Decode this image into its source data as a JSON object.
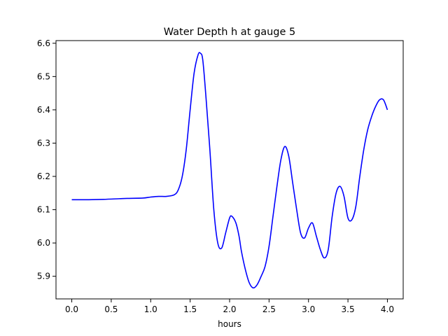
{
  "chart_data": {
    "type": "line",
    "title": "Water Depth h at gauge 5",
    "xlabel": "hours",
    "ylabel": "",
    "xlim": [
      -0.2,
      4.2
    ],
    "ylim": [
      5.832,
      6.608
    ],
    "xticks": [
      0.0,
      0.5,
      1.0,
      1.5,
      2.0,
      2.5,
      3.0,
      3.5,
      4.0
    ],
    "xtick_labels": [
      "0.0",
      "0.5",
      "1.0",
      "1.5",
      "2.0",
      "2.5",
      "3.0",
      "3.5",
      "4.0"
    ],
    "yticks": [
      5.9,
      6.0,
      6.1,
      6.2,
      6.3,
      6.4,
      6.5,
      6.6
    ],
    "ytick_labels": [
      "5.9",
      "6.0",
      "6.1",
      "6.2",
      "6.3",
      "6.4",
      "6.5",
      "6.6"
    ],
    "grid": false,
    "series": [
      {
        "color": "#0000ff",
        "x": [
          0.0,
          0.2,
          0.4,
          0.6,
          0.7,
          0.9,
          1.0,
          1.1,
          1.2,
          1.3,
          1.35,
          1.4,
          1.45,
          1.5,
          1.55,
          1.6,
          1.63,
          1.66,
          1.7,
          1.75,
          1.8,
          1.85,
          1.9,
          1.95,
          2.0,
          2.03,
          2.08,
          2.12,
          2.15,
          2.2,
          2.25,
          2.3,
          2.35,
          2.4,
          2.45,
          2.5,
          2.55,
          2.6,
          2.65,
          2.7,
          2.75,
          2.8,
          2.85,
          2.9,
          2.95,
          3.0,
          3.05,
          3.1,
          3.15,
          3.2,
          3.25,
          3.3,
          3.35,
          3.4,
          3.45,
          3.5,
          3.55,
          3.6,
          3.65,
          3.7,
          3.75,
          3.8,
          3.85,
          3.9,
          3.95,
          4.0
        ],
        "y": [
          6.13,
          6.13,
          6.131,
          6.133,
          6.134,
          6.135,
          6.138,
          6.14,
          6.14,
          6.145,
          6.16,
          6.2,
          6.28,
          6.4,
          6.51,
          6.565,
          6.57,
          6.55,
          6.44,
          6.28,
          6.1,
          6.0,
          5.985,
          6.03,
          6.075,
          6.08,
          6.06,
          6.02,
          5.975,
          5.92,
          5.88,
          5.865,
          5.875,
          5.9,
          5.93,
          5.99,
          6.08,
          6.17,
          6.25,
          6.29,
          6.26,
          6.18,
          6.1,
          6.03,
          6.015,
          6.045,
          6.06,
          6.02,
          5.98,
          5.955,
          5.98,
          6.08,
          6.15,
          6.17,
          6.14,
          6.075,
          6.07,
          6.11,
          6.2,
          6.28,
          6.34,
          6.38,
          6.41,
          6.43,
          6.43,
          6.4
        ]
      }
    ]
  }
}
